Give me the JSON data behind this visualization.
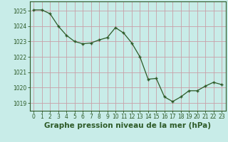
{
  "x": [
    0,
    1,
    2,
    3,
    4,
    5,
    6,
    7,
    8,
    9,
    10,
    11,
    12,
    13,
    14,
    15,
    16,
    17,
    18,
    19,
    20,
    21,
    22,
    23
  ],
  "y": [
    1025.05,
    1025.05,
    1024.8,
    1024.0,
    1023.4,
    1023.0,
    1022.85,
    1022.9,
    1023.1,
    1023.25,
    1023.9,
    1023.55,
    1022.9,
    1022.0,
    1020.55,
    1020.6,
    1019.4,
    1019.1,
    1019.4,
    1019.8,
    1019.8,
    1020.1,
    1020.35,
    1020.2
  ],
  "line_color": "#2d5a27",
  "marker": "+",
  "background_color": "#c8ece8",
  "grid_color": "#c8a0a8",
  "xlabel": "Graphe pression niveau de la mer (hPa)",
  "xlabel_fontsize": 7.5,
  "tick_fontsize": 5.5,
  "ylim": [
    1018.5,
    1025.6
  ],
  "xlim": [
    -0.5,
    23.5
  ],
  "yticks": [
    1019,
    1020,
    1021,
    1022,
    1023,
    1024,
    1025
  ],
  "xticks": [
    0,
    1,
    2,
    3,
    4,
    5,
    6,
    7,
    8,
    9,
    10,
    11,
    12,
    13,
    14,
    15,
    16,
    17,
    18,
    19,
    20,
    21,
    22,
    23
  ]
}
